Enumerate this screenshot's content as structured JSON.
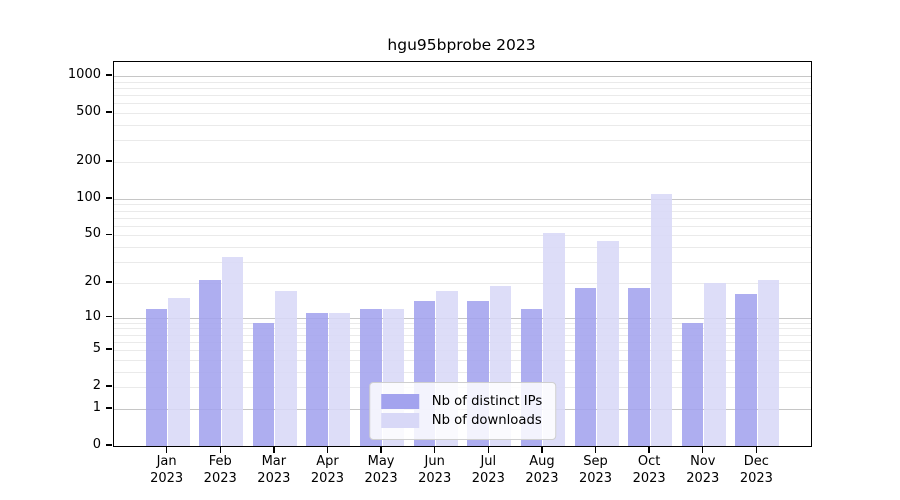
{
  "chart_data": {
    "type": "bar",
    "title": "hgu95bprobe 2023",
    "xlabel": "",
    "ylabel": "",
    "categories": [
      "Jan",
      "Feb",
      "Mar",
      "Apr",
      "May",
      "Jun",
      "Jul",
      "Aug",
      "Sep",
      "Oct",
      "Nov",
      "Dec"
    ],
    "year_label": "2023",
    "series": [
      {
        "name": "Nb of distinct IPs",
        "color": "#a3a3ee",
        "values": [
          12,
          21,
          9,
          11,
          12,
          14,
          14,
          12,
          18,
          18,
          9,
          16
        ]
      },
      {
        "name": "Nb of downloads",
        "color": "#d8d8f7",
        "values": [
          15,
          33,
          17,
          11,
          12,
          17,
          19,
          52,
          45,
          110,
          20,
          21
        ]
      }
    ],
    "y_scale": "log10(1+x)",
    "y_ticks": [
      0,
      1,
      2,
      5,
      10,
      20,
      50,
      100,
      200,
      500,
      1000
    ],
    "ylim": [
      0,
      1300
    ],
    "grid": "horizontal minor+major log gridlines",
    "legend_position": "inside bottom center"
  },
  "colors": {
    "bar_ips": "#a3a3ee",
    "bar_downloads": "#d8d8f7",
    "grid_major": "#c6c6c6",
    "grid_minor": "#eaeaea",
    "axis": "#000000"
  }
}
